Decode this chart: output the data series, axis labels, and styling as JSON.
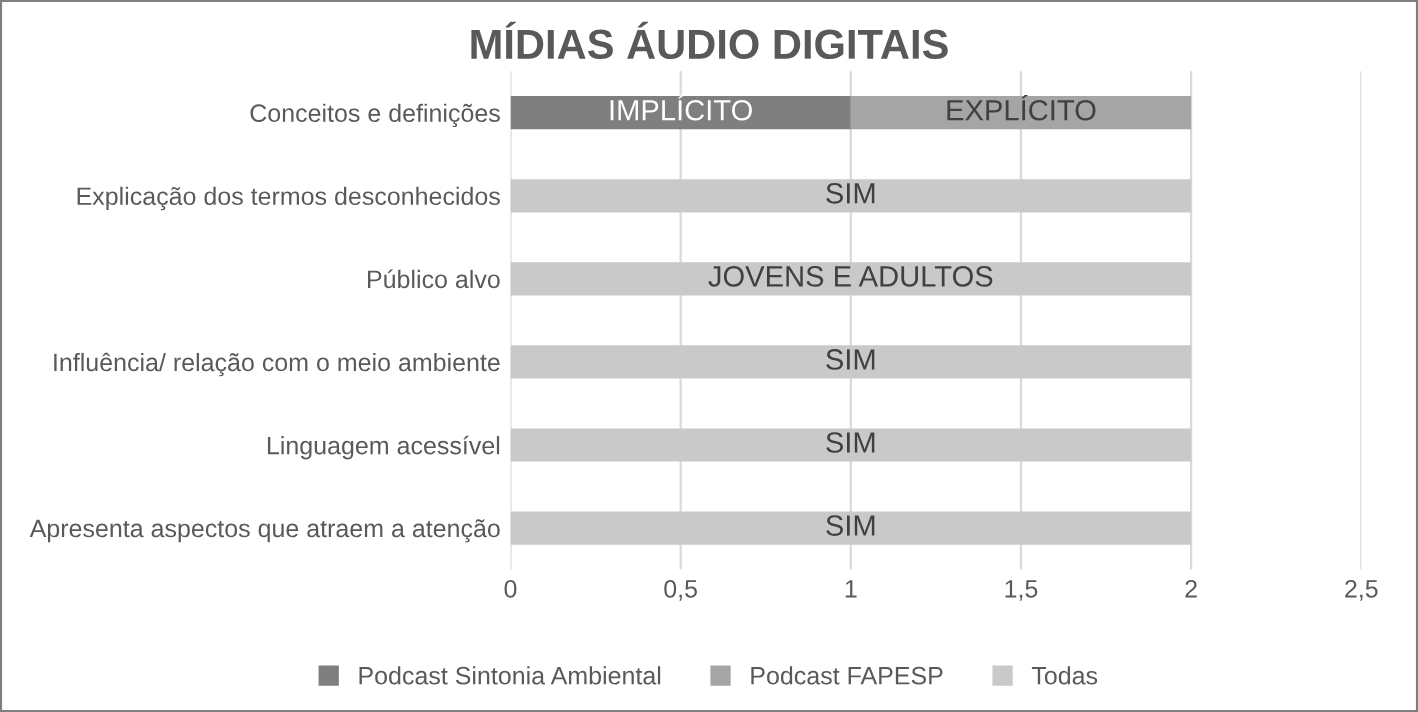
{
  "chart_data": {
    "type": "bar",
    "orientation": "horizontal",
    "stacked": true,
    "title": "MÍDIAS ÁUDIO DIGITAIS",
    "categories": [
      "Conceitos e definições",
      "Explicação dos termos desconhecidos",
      "Público alvo",
      "Influência/ relação com o meio ambiente",
      "Linguagem acessível",
      "Apresenta aspectos que atraem a atenção"
    ],
    "series": [
      {
        "name": "Podcast Sintonia Ambiental",
        "color": "#7f7f7f",
        "values": [
          1,
          null,
          null,
          null,
          null,
          null
        ],
        "value_labels": [
          "IMPLÍCITO",
          null,
          null,
          null,
          null,
          null
        ]
      },
      {
        "name": "Podcast FAPESP",
        "color": "#a5a5a5",
        "values": [
          1,
          null,
          null,
          null,
          null,
          null
        ],
        "value_labels": [
          "EXPLÍCITO",
          null,
          null,
          null,
          null,
          null
        ]
      },
      {
        "name": "Todas",
        "color": "#c9c9c9",
        "values": [
          null,
          2,
          2,
          2,
          2,
          2
        ],
        "value_labels": [
          null,
          "SIM",
          "JOVENS E ADULTOS",
          "SIM",
          "SIM",
          "SIM"
        ]
      }
    ],
    "xlim": [
      0,
      2.5
    ],
    "xticks": [
      0,
      {
        "value": 0.5,
        "label": "0,5"
      },
      1,
      {
        "value": 1.5,
        "label": "1,5"
      },
      2,
      {
        "value": 2.5,
        "label": "2,5"
      }
    ],
    "grid": "x",
    "legend": "bottom"
  }
}
